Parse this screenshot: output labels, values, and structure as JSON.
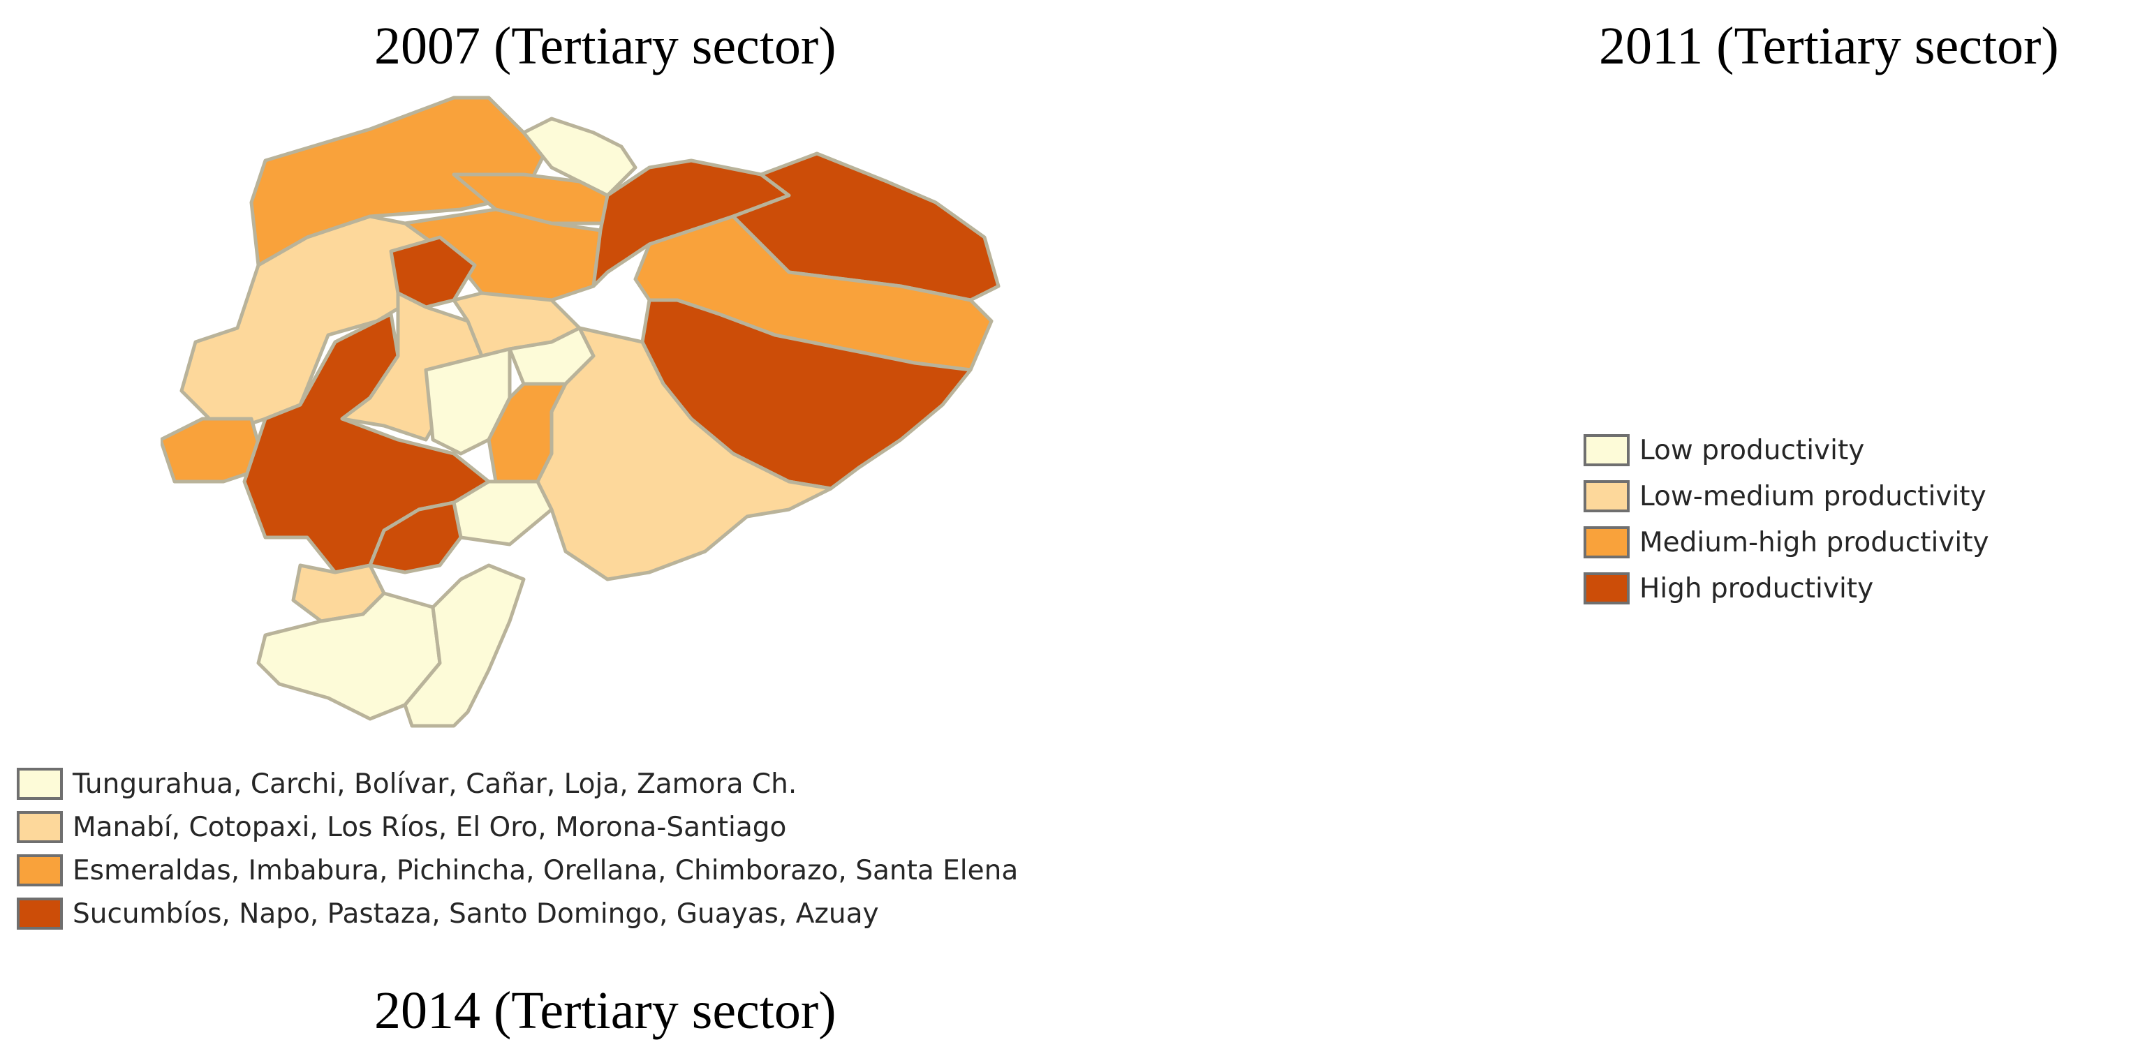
{
  "titles": {
    "t2007": "2007 (Tertiary sector)",
    "t2011": "2011 (Tertiary sector)",
    "t2014": "2014 (Tertiary sector)"
  },
  "colors": {
    "low": "#fdfbd8",
    "low_medium": "#fdd89b",
    "medium_high": "#f9a23b",
    "high": "#cc4d08",
    "border": "#b9b39a"
  },
  "legend_2007": [
    {
      "class": "low",
      "label": "Tungurahua, Carchi, Bolívar, Cañar, Loja, Zamora Ch."
    },
    {
      "class": "low_medium",
      "label": "Manabí, Cotopaxi, Los Ríos, El Oro, Morona-Santiago"
    },
    {
      "class": "medium_high",
      "label": "Esmeraldas, Imbabura, Pichincha, Orellana, Chimborazo, Santa Elena"
    },
    {
      "class": "high",
      "label": "Sucumbíos, Napo, Pastaza, Santo Domingo, Guayas, Azuay"
    }
  ],
  "legend_2011": [
    {
      "class": "low",
      "label": "Low productivity"
    },
    {
      "class": "low_medium",
      "label": "Low-medium productivity"
    },
    {
      "class": "medium_high",
      "label": "Medium-high productivity"
    },
    {
      "class": "high",
      "label": "High productivity"
    }
  ]
}
